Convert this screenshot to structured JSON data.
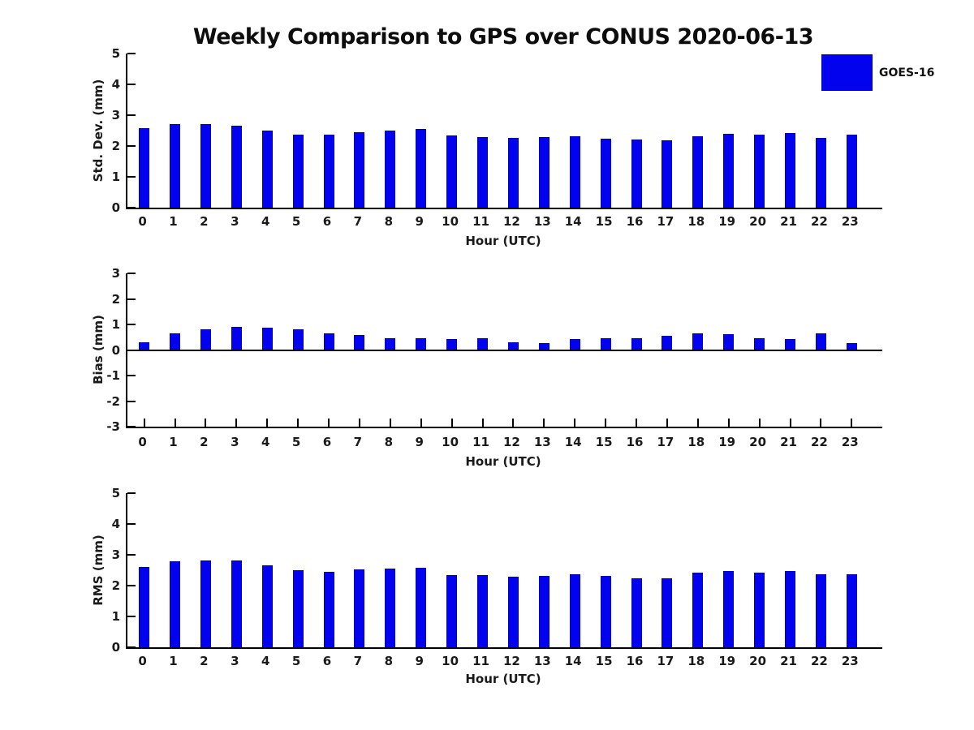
{
  "title": "Weekly Comparison to GPS over CONUS 2020-06-13",
  "legend": {
    "label": "GOES-16",
    "color": "#0202ef",
    "position": "top-right-outside"
  },
  "colors": {
    "bar_fill": "#0202ef",
    "bar_border": "#0000c5",
    "axis": "#000000",
    "text": "#1a1a1a",
    "background": "#ffffff"
  },
  "chart_data": [
    {
      "type": "bar",
      "panel": "std-dev",
      "title": "",
      "xlabel": "Hour (UTC)",
      "ylabel": "Std. Dev. (mm)",
      "categories": [
        "0",
        "1",
        "2",
        "3",
        "4",
        "5",
        "6",
        "7",
        "8",
        "9",
        "10",
        "11",
        "12",
        "13",
        "14",
        "15",
        "16",
        "17",
        "18",
        "19",
        "20",
        "21",
        "22",
        "23"
      ],
      "series": [
        {
          "name": "GOES-16",
          "values": [
            2.58,
            2.72,
            2.7,
            2.66,
            2.51,
            2.38,
            2.36,
            2.45,
            2.5,
            2.54,
            2.33,
            2.29,
            2.27,
            2.29,
            2.32,
            2.24,
            2.2,
            2.18,
            2.32,
            2.4,
            2.37,
            2.43,
            2.26,
            2.37
          ]
        }
      ],
      "ylim": [
        0,
        5
      ],
      "yticks": [
        0,
        1,
        2,
        3,
        4,
        5
      ],
      "grid": false,
      "zero_line": false,
      "bottom_axis_ticks": false
    },
    {
      "type": "bar",
      "panel": "bias",
      "title": "",
      "xlabel": "Hour (UTC)",
      "ylabel": "Bias (mm)",
      "categories": [
        "0",
        "1",
        "2",
        "3",
        "4",
        "5",
        "6",
        "7",
        "8",
        "9",
        "10",
        "11",
        "12",
        "13",
        "14",
        "15",
        "16",
        "17",
        "18",
        "19",
        "20",
        "21",
        "22",
        "23"
      ],
      "series": [
        {
          "name": "GOES-16",
          "values": [
            0.31,
            0.65,
            0.8,
            0.9,
            0.86,
            0.8,
            0.65,
            0.58,
            0.46,
            0.46,
            0.42,
            0.46,
            0.31,
            0.27,
            0.44,
            0.46,
            0.47,
            0.55,
            0.64,
            0.63,
            0.45,
            0.42,
            0.66,
            0.28
          ]
        }
      ],
      "ylim": [
        -3,
        3
      ],
      "yticks": [
        3,
        2,
        1,
        0,
        -1,
        -2,
        -3
      ],
      "grid": false,
      "zero_line": true,
      "bottom_axis_ticks": true
    },
    {
      "type": "bar",
      "panel": "rms",
      "title": "",
      "xlabel": "Hour (UTC)",
      "ylabel": "RMS (mm)",
      "categories": [
        "0",
        "1",
        "2",
        "3",
        "4",
        "5",
        "6",
        "7",
        "8",
        "9",
        "10",
        "11",
        "12",
        "13",
        "14",
        "15",
        "16",
        "17",
        "18",
        "19",
        "20",
        "21",
        "22",
        "23"
      ],
      "series": [
        {
          "name": "GOES-16",
          "values": [
            2.6,
            2.8,
            2.81,
            2.81,
            2.65,
            2.51,
            2.45,
            2.52,
            2.54,
            2.58,
            2.35,
            2.33,
            2.28,
            2.31,
            2.36,
            2.31,
            2.25,
            2.25,
            2.42,
            2.48,
            2.42,
            2.48,
            2.36,
            2.38
          ]
        }
      ],
      "ylim": [
        0,
        5
      ],
      "yticks": [
        0,
        1,
        2,
        3,
        4,
        5
      ],
      "grid": false,
      "zero_line": false,
      "bottom_axis_ticks": false
    }
  ]
}
